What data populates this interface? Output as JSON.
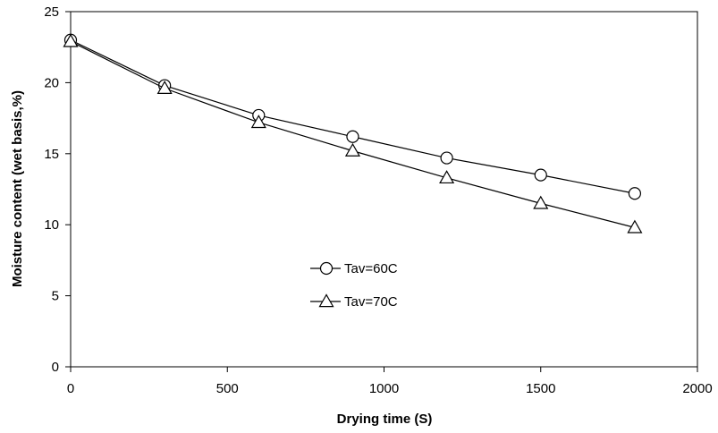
{
  "chart_data": {
    "type": "line",
    "title": "",
    "xlabel": "Drying time (S)",
    "ylabel": "Moisture content (wet basis,%)",
    "xlim": [
      0,
      2000
    ],
    "ylim": [
      0,
      25
    ],
    "xticks": [
      "0",
      "500",
      "1000",
      "1500",
      "2000"
    ],
    "yticks": [
      "0",
      "5",
      "10",
      "15",
      "20",
      "25"
    ],
    "grid": false,
    "legend_position": "center-left",
    "series": [
      {
        "name": "Tav=60C",
        "marker": "circle",
        "color": "#000000",
        "x": [
          0,
          300,
          600,
          900,
          1200,
          1500,
          1800
        ],
        "y": [
          23.0,
          19.8,
          17.7,
          16.2,
          14.7,
          13.5,
          12.2
        ]
      },
      {
        "name": "Tav=70C",
        "marker": "triangle",
        "color": "#000000",
        "x": [
          0,
          300,
          600,
          900,
          1200,
          1500,
          1800
        ],
        "y": [
          22.9,
          19.6,
          17.2,
          15.2,
          13.3,
          11.5,
          9.8
        ]
      }
    ]
  }
}
